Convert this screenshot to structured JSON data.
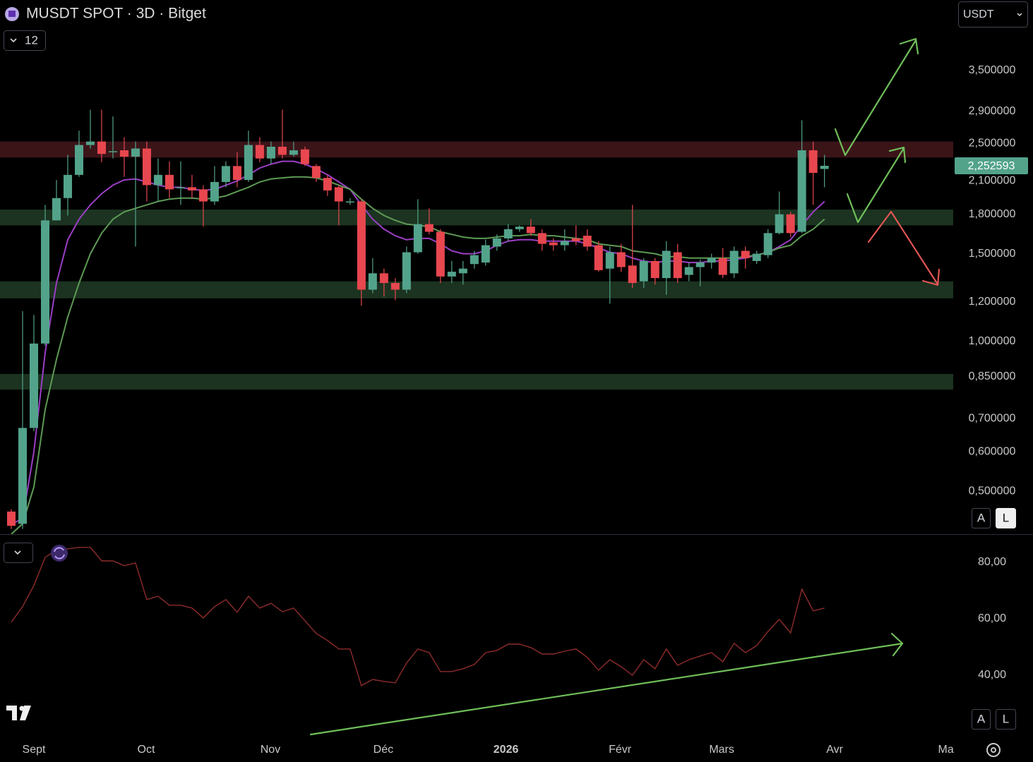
{
  "ui": {
    "currency": "USDT",
    "indicator_count": "12",
    "auto": "A",
    "log": "L"
  },
  "chart_data": [
    {
      "type": "candlestick",
      "title": "MUSDT SPOT · 3D · Bitget",
      "log_scale": true,
      "up_color": "#53a38b",
      "down_color": "#e8474f",
      "ylim": [
        0.41,
        4.85
      ],
      "yticks": [
        {
          "value": 3.5,
          "label": "3,500000"
        },
        {
          "value": 2.9,
          "label": "2,900000"
        },
        {
          "value": 2.5,
          "label": "2,500000"
        },
        {
          "value": 2.1,
          "label": "2,100000"
        },
        {
          "value": 1.8,
          "label": "1,800000"
        },
        {
          "value": 1.5,
          "label": "1,500000"
        },
        {
          "value": 1.2,
          "label": "1,200000"
        },
        {
          "value": 1.0,
          "label": "1,000000"
        },
        {
          "value": 0.85,
          "label": "0,850000"
        },
        {
          "value": 0.7,
          "label": "0,700000"
        },
        {
          "value": 0.6,
          "label": "0,600000"
        },
        {
          "value": 0.5,
          "label": "0,500000"
        }
      ],
      "xlim": [
        -1,
        83.4
      ],
      "xticks": [
        {
          "value": 2,
          "label": "Sept"
        },
        {
          "value": 11.94,
          "label": "Oct"
        },
        {
          "value": 22.94,
          "label": "Nov"
        },
        {
          "value": 32.94,
          "label": "Déc"
        },
        {
          "value": 43.8,
          "label": "2026"
        },
        {
          "value": 53.9,
          "label": "Févr"
        },
        {
          "value": 62.9,
          "label": "Mars"
        },
        {
          "value": 72.9,
          "label": "Avr"
        },
        {
          "value": 82.75,
          "label": "Ma"
        }
      ],
      "open": [
        0.455,
        0.43,
        0.67,
        0.99,
        1.75,
        1.94,
        2.16,
        2.48,
        2.52,
        2.4,
        2.42,
        2.35,
        2.44,
        2.06,
        2.16,
        2.04,
        2.04,
        2.02,
        1.91,
        2.09,
        2.25,
        2.11,
        2.48,
        2.33,
        2.46,
        2.37,
        2.43,
        2.25,
        2.13,
        2.04,
        1.91,
        1.91,
        1.27,
        1.37,
        1.31,
        1.27,
        1.51,
        1.72,
        1.66,
        1.35,
        1.37,
        1.43,
        1.44,
        1.55,
        1.61,
        1.68,
        1.7,
        1.65,
        1.58,
        1.56,
        1.61,
        1.63,
        1.56,
        1.4,
        1.51,
        1.42,
        1.32,
        1.45,
        1.34,
        1.51,
        1.36,
        1.41,
        1.44,
        1.47,
        1.37,
        1.52,
        1.45,
        1.49,
        1.65,
        1.8,
        1.66,
        2.42,
        2.22
      ],
      "high": [
        0.46,
        1.15,
        1.13,
        1.88,
        2.11,
        2.37,
        2.65,
        2.92,
        2.92,
        2.83,
        2.57,
        2.52,
        2.52,
        2.33,
        2.3,
        2.3,
        2.16,
        2.06,
        2.25,
        2.3,
        2.4,
        2.65,
        2.57,
        2.52,
        2.92,
        2.52,
        2.46,
        2.27,
        2.16,
        2.06,
        1.94,
        1.93,
        1.47,
        1.4,
        1.34,
        1.55,
        1.93,
        1.85,
        1.68,
        1.45,
        1.45,
        1.52,
        1.6,
        1.64,
        1.72,
        1.71,
        1.76,
        1.68,
        1.61,
        1.68,
        1.71,
        1.68,
        1.59,
        1.55,
        1.57,
        1.88,
        1.47,
        1.47,
        1.59,
        1.57,
        1.44,
        1.46,
        1.5,
        1.54,
        1.55,
        1.55,
        1.52,
        1.68,
        2.0,
        1.82,
        2.78,
        2.52,
        2.37
      ],
      "low": [
        0.42,
        0.42,
        0.66,
        0.98,
        1.76,
        1.79,
        2.14,
        2.44,
        2.29,
        2.33,
        2.14,
        1.55,
        1.91,
        1.91,
        1.94,
        1.88,
        1.94,
        1.7,
        1.88,
        2.04,
        2.04,
        2.09,
        2.29,
        2.27,
        2.33,
        2.35,
        2.25,
        2.09,
        1.96,
        1.71,
        1.88,
        1.18,
        1.25,
        1.23,
        1.21,
        1.25,
        1.5,
        1.64,
        1.31,
        1.31,
        1.3,
        1.4,
        1.42,
        1.52,
        1.59,
        1.66,
        1.63,
        1.52,
        1.52,
        1.52,
        1.56,
        1.52,
        1.38,
        1.19,
        1.38,
        1.28,
        1.28,
        1.3,
        1.24,
        1.31,
        1.32,
        1.29,
        1.4,
        1.34,
        1.34,
        1.4,
        1.43,
        1.47,
        1.64,
        1.62,
        1.65,
        1.88,
        2.04
      ],
      "close": [
        0.426,
        0.67,
        0.99,
        1.75,
        1.94,
        2.16,
        2.48,
        2.52,
        2.38,
        2.41,
        2.35,
        2.44,
        2.06,
        2.16,
        2.02,
        2.04,
        2.01,
        1.91,
        2.09,
        2.25,
        2.11,
        2.48,
        2.33,
        2.46,
        2.37,
        2.42,
        2.27,
        2.13,
        2.01,
        1.91,
        1.91,
        1.27,
        1.37,
        1.31,
        1.27,
        1.51,
        1.72,
        1.66,
        1.35,
        1.38,
        1.4,
        1.49,
        1.56,
        1.61,
        1.68,
        1.7,
        1.65,
        1.57,
        1.56,
        1.59,
        1.59,
        1.55,
        1.39,
        1.51,
        1.41,
        1.31,
        1.45,
        1.34,
        1.52,
        1.34,
        1.41,
        1.44,
        1.47,
        1.36,
        1.52,
        1.47,
        1.5,
        1.65,
        1.8,
        1.65,
        2.42,
        2.18,
        2.252593
      ],
      "lines": [
        {
          "color": "#9b3fc4",
          "values": [
            0.43,
            0.44,
            0.6,
            0.95,
            1.31,
            1.6,
            1.76,
            1.88,
            1.98,
            2.06,
            2.11,
            2.12,
            2.09,
            2.06,
            2.04,
            2.04,
            2.02,
            2.01,
            2.02,
            2.06,
            2.1,
            2.16,
            2.23,
            2.27,
            2.3,
            2.3,
            2.27,
            2.22,
            2.16,
            2.09,
            2.02,
            1.88,
            1.76,
            1.68,
            1.63,
            1.6,
            1.61,
            1.61,
            1.57,
            1.52,
            1.5,
            1.5,
            1.52,
            1.56,
            1.59,
            1.6,
            1.6,
            1.59,
            1.59,
            1.59,
            1.59,
            1.57,
            1.54,
            1.51,
            1.5,
            1.47,
            1.45,
            1.44,
            1.45,
            1.45,
            1.44,
            1.44,
            1.45,
            1.45,
            1.46,
            1.47,
            1.49,
            1.51,
            1.55,
            1.6,
            1.71,
            1.82,
            1.91
          ]
        },
        {
          "color": "#5e9a55",
          "values": [
            0.41,
            0.43,
            0.51,
            0.73,
            0.92,
            1.12,
            1.31,
            1.5,
            1.65,
            1.76,
            1.82,
            1.85,
            1.88,
            1.91,
            1.93,
            1.94,
            1.94,
            1.93,
            1.94,
            1.96,
            2.0,
            2.04,
            2.09,
            2.12,
            2.13,
            2.14,
            2.14,
            2.13,
            2.1,
            2.06,
            2.02,
            1.93,
            1.85,
            1.79,
            1.75,
            1.72,
            1.71,
            1.7,
            1.66,
            1.64,
            1.62,
            1.61,
            1.61,
            1.62,
            1.63,
            1.63,
            1.64,
            1.63,
            1.63,
            1.62,
            1.61,
            1.6,
            1.57,
            1.56,
            1.55,
            1.52,
            1.51,
            1.5,
            1.48,
            1.48,
            1.47,
            1.47,
            1.47,
            1.47,
            1.47,
            1.48,
            1.49,
            1.51,
            1.54,
            1.56,
            1.63,
            1.68,
            1.76
          ]
        }
      ],
      "zones": [
        {
          "from": 2.34,
          "to": 2.52,
          "color": "#3b1418"
        },
        {
          "from": 1.71,
          "to": 1.84,
          "color": "#1b3320"
        },
        {
          "from": 1.22,
          "to": 1.32,
          "color": "#1b3320"
        },
        {
          "from": 0.8,
          "to": 0.86,
          "color": "#1b3320"
        }
      ],
      "price_tag": {
        "value": 2.252593,
        "label": "2,252593",
        "color": "#53a38b"
      }
    },
    {
      "type": "line",
      "color": "#8e2c2c",
      "ylim": [
        18,
        89.25
      ],
      "yticks": [
        {
          "value": 80,
          "label": "80,00"
        },
        {
          "value": 60,
          "label": "60,00"
        },
        {
          "value": 40,
          "label": "40,00"
        }
      ],
      "values": [
        58.8,
        64.3,
        71.8,
        81.8,
        84.3,
        84.8,
        85.3,
        85.3,
        80.5,
        80.5,
        78.8,
        79.8,
        66.8,
        68,
        64.8,
        64.8,
        63.8,
        60.3,
        64.3,
        66.8,
        62.3,
        68,
        63.8,
        65.5,
        62.5,
        63.8,
        59.3,
        54.8,
        52.3,
        49.3,
        49.3,
        36.3,
        38.5,
        37.8,
        37.3,
        44.3,
        49.3,
        48,
        41.3,
        41.3,
        42.3,
        43.8,
        48,
        48.8,
        51,
        51,
        49.8,
        47.5,
        47.5,
        48.5,
        49.3,
        46.3,
        41.8,
        45.5,
        43,
        40,
        45.5,
        42.3,
        49.3,
        43.5,
        45.5,
        46.8,
        48,
        44.8,
        51.3,
        48,
        50.5,
        55.5,
        59.8,
        55,
        70.5,
        62.8,
        63.8
      ]
    }
  ]
}
